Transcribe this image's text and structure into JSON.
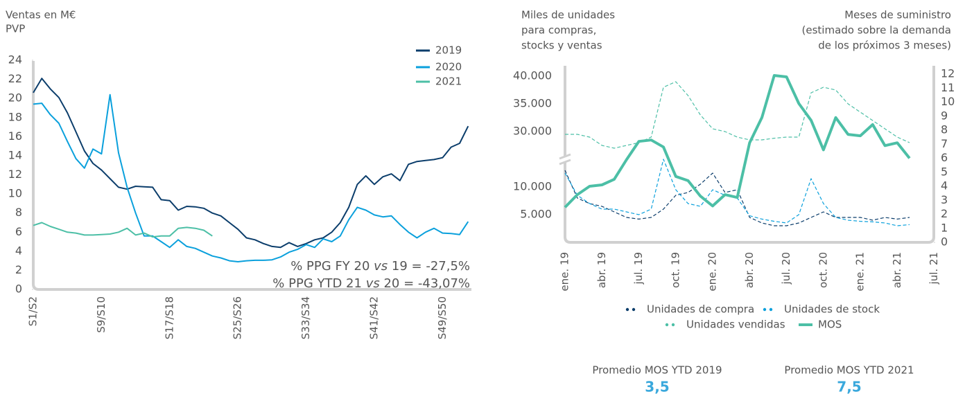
{
  "chart_data": [
    {
      "type": "line",
      "y_label": [
        "Ventas en M€",
        "PVP"
      ],
      "categories": [
        "S1/S2",
        null,
        null,
        null,
        null,
        null,
        null,
        null,
        "S9/S10",
        null,
        null,
        null,
        null,
        null,
        null,
        null,
        "S17/S18",
        null,
        null,
        null,
        null,
        null,
        null,
        null,
        "S25/S26",
        null,
        null,
        null,
        null,
        null,
        null,
        null,
        "S33/S34",
        null,
        null,
        null,
        null,
        null,
        null,
        null,
        "S41/S42",
        null,
        null,
        null,
        null,
        null,
        null,
        null,
        "S49/S50",
        null,
        null,
        null
      ],
      "ylim": [
        0,
        24
      ],
      "yticks": [
        0,
        2,
        4,
        6,
        8,
        10,
        12,
        14,
        16,
        18,
        20,
        22,
        24
      ],
      "legend": "top-right",
      "series": [
        {
          "name": "2019",
          "color": "#0b3d6b",
          "values": [
            20.6,
            22.1,
            21,
            20.1,
            18.5,
            16.5,
            14.5,
            13.2,
            12.5,
            11.6,
            10.7,
            10.5,
            10.8,
            10.75,
            10.7,
            9.4,
            9.3,
            8.3,
            8.7,
            8.65,
            8.5,
            8.0,
            7.7,
            7.0,
            6.3,
            5.4,
            5.2,
            4.8,
            4.5,
            4.4,
            4.9,
            4.5,
            4.8,
            5.2,
            5.4,
            6.0,
            7.0,
            8.6,
            11.0,
            11.9,
            11.0,
            11.8,
            12.1,
            11.4,
            13.1,
            13.4,
            13.5,
            13.6,
            13.8,
            14.9,
            15.3,
            17.1
          ]
        },
        {
          "name": "2020",
          "color": "#0aa0dc",
          "values": [
            19.4,
            19.5,
            18.3,
            17.4,
            15.5,
            13.7,
            12.7,
            14.7,
            14.2,
            20.4,
            14.3,
            10.7,
            8.0,
            5.6,
            5.6,
            5.0,
            4.4,
            5.2,
            4.5,
            4.3,
            3.9,
            3.5,
            3.3,
            3.0,
            2.9,
            3.0,
            3.05,
            3.05,
            3.1,
            3.4,
            3.9,
            4.2,
            4.7,
            4.4,
            5.3,
            5.0,
            5.6,
            7.3,
            8.6,
            8.3,
            7.8,
            7.6,
            7.7,
            6.8,
            6.0,
            5.4,
            6.0,
            6.4,
            5.9,
            5.85,
            5.75,
            7.1
          ]
        },
        {
          "name": "2021",
          "color": "#4cbfa6",
          "values": [
            6.7,
            7.0,
            6.6,
            6.3,
            6.0,
            5.9,
            5.7,
            5.7,
            5.75,
            5.8,
            6.0,
            6.4,
            5.7,
            5.9,
            5.5,
            5.6,
            5.6,
            6.4,
            6.5,
            6.4,
            6.2,
            5.6,
            null,
            null,
            null,
            null,
            null,
            null,
            null,
            null,
            null,
            null,
            null,
            null,
            null,
            null,
            null,
            null,
            null,
            null,
            null,
            null,
            null,
            null,
            null,
            null,
            null,
            null,
            null,
            null,
            null,
            null
          ]
        }
      ],
      "annotations": [
        [
          "% PPG FY 20 ",
          "vs",
          " 19 = -27,5%"
        ],
        [
          "% PPG YTD 21 ",
          "vs",
          " 20 = -43,07%"
        ]
      ]
    },
    {
      "type": "line",
      "y_label": [
        "Miles de unidades",
        "para compras,",
        "stocks y ventas"
      ],
      "y2_label": [
        "Meses de suministro",
        "(estimado sobre la demanda",
        "de los próximos 3 meses)"
      ],
      "categories": [
        "ene. 19",
        null,
        null,
        "abr. 19",
        null,
        null,
        "jul. 19",
        null,
        null,
        "oct. 19",
        null,
        null,
        "ene. 20",
        null,
        null,
        "abr. 20",
        null,
        null,
        "jul. 20",
        null,
        null,
        "oct. 20",
        null,
        null,
        "ene. 21",
        null,
        null,
        "abr. 21",
        null,
        null,
        "jul. 21"
      ],
      "ylim": [
        0,
        43000
      ],
      "ybreak": [
        15000,
        25000
      ],
      "yticks": [
        {
          "value": 5000,
          "label": "5.000"
        },
        {
          "value": 10000,
          "label": "10.000"
        },
        {
          "value": 30000,
          "label": "30.000"
        },
        {
          "value": 35000,
          "label": "35.000"
        },
        {
          "value": 40000,
          "label": "40.000"
        }
      ],
      "y2lim": [
        0,
        12
      ],
      "y2ticks": [
        0,
        1,
        2,
        3,
        4,
        5,
        6,
        7,
        8,
        9,
        10,
        11,
        12
      ],
      "legend": "bottom",
      "series": [
        {
          "name": "Unidades de compra",
          "color": "#0b3d6b",
          "dashed": true,
          "values": [
            13000,
            8000,
            7000,
            6500,
            5500,
            4500,
            4200,
            4500,
            6000,
            8500,
            9000,
            10500,
            12500,
            9000,
            9500,
            4500,
            3500,
            3000,
            3000,
            3500,
            4500,
            5500,
            4500,
            4500,
            4500,
            4000,
            4500,
            4200,
            4500,
            null,
            null
          ]
        },
        {
          "name": "Unidades de stock",
          "color": "#0aa0dc",
          "dashed": true,
          "values": [
            12500,
            8500,
            7000,
            6000,
            6000,
            5500,
            5000,
            6000,
            15000,
            9500,
            7000,
            6500,
            9500,
            8500,
            8000,
            4800,
            4200,
            3800,
            3500,
            5000,
            11500,
            7000,
            4500,
            4000,
            3800,
            3700,
            3500,
            3000,
            3200,
            null,
            null
          ]
        },
        {
          "name": "Unidades vendidas",
          "color": "#4cbfa6",
          "dashed": true,
          "values": [
            29500,
            29500,
            29000,
            27500,
            27000,
            27500,
            28000,
            29000,
            38000,
            39000,
            36500,
            33000,
            30500,
            30000,
            29000,
            28500,
            28500,
            28800,
            29000,
            29000,
            37000,
            38000,
            37500,
            35000,
            33500,
            32000,
            30500,
            29000,
            28000,
            null,
            null
          ]
        },
        {
          "name": "MOS",
          "color": "#4cbfa6",
          "axis": "y2",
          "values": [
            2.5,
            3.4,
            4.0,
            4.1,
            4.5,
            5.9,
            7.2,
            7.3,
            6.8,
            4.7,
            4.4,
            3.3,
            2.6,
            3.4,
            3.2,
            7.1,
            8.9,
            11.9,
            11.8,
            9.9,
            8.7,
            6.6,
            8.9,
            7.7,
            7.6,
            8.4,
            6.9,
            7.1,
            6.0,
            null,
            null
          ]
        }
      ]
    }
  ],
  "stats": [
    {
      "label": "Promedio MOS YTD 2019",
      "value": "3,5"
    },
    {
      "label": "Promedio MOS YTD 2021",
      "value": "7,5"
    }
  ]
}
